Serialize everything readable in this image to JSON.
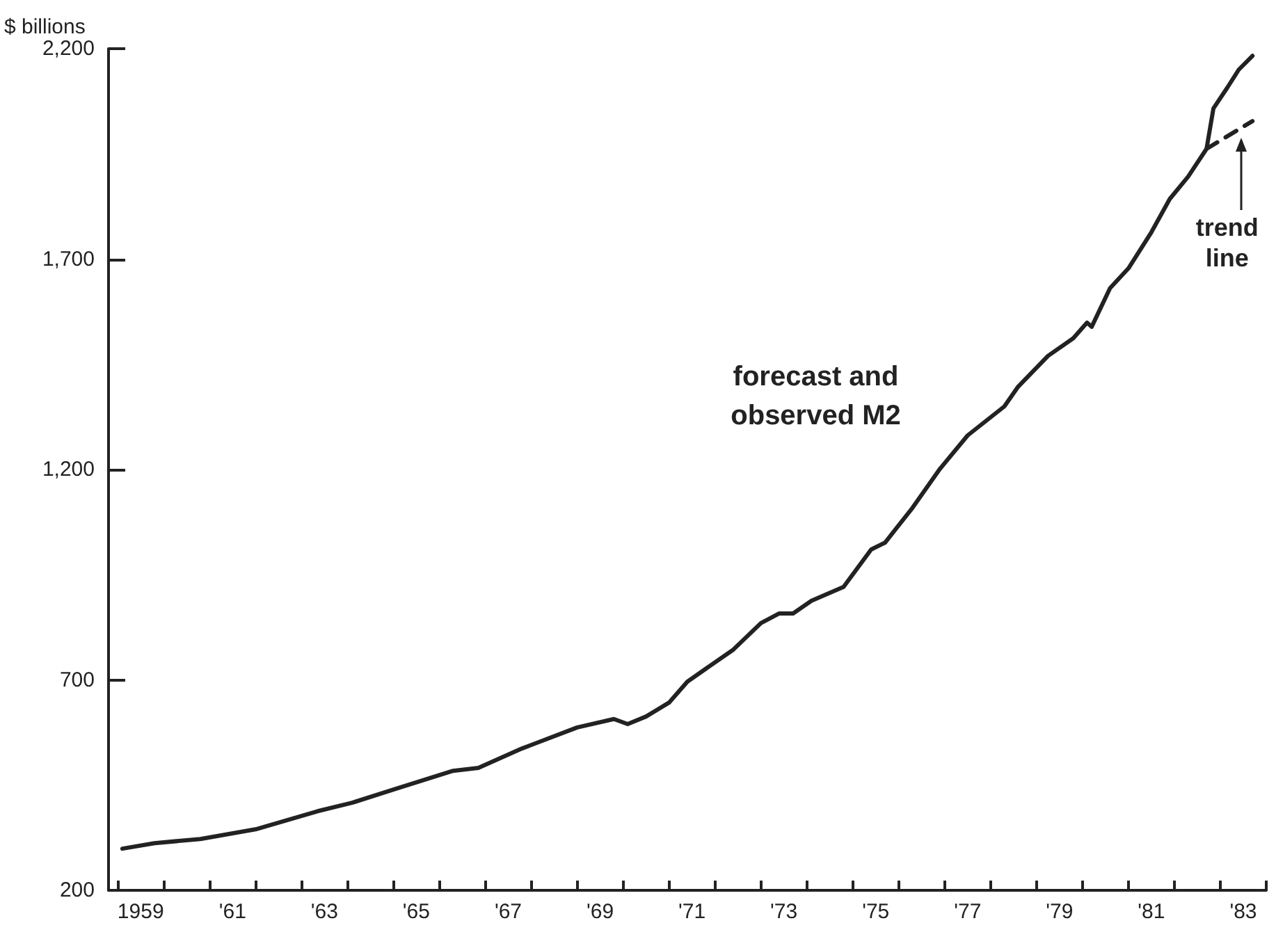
{
  "chart_data": {
    "type": "line",
    "ylabel": "$ billions",
    "legend": false,
    "grid": false,
    "marker": "none",
    "xlim": [
      1958.3,
      1983.5
    ],
    "ylim": [
      200,
      2200
    ],
    "yticks": [
      200,
      700,
      {
        "value": 1200,
        "label": "1,200"
      },
      {
        "value": 1700,
        "label": "1,700"
      },
      {
        "value": 2200,
        "label": "2,200"
      }
    ],
    "xticks": [
      {
        "value": 1958.5,
        "label": null
      },
      {
        "value": 1959,
        "label": "1959"
      },
      {
        "value": 1959.5,
        "label": null
      },
      {
        "value": 1960.5,
        "label": null
      },
      {
        "value": 1961,
        "label": "'61"
      },
      {
        "value": 1961.5,
        "label": null
      },
      {
        "value": 1962.5,
        "label": null
      },
      {
        "value": 1963,
        "label": "'63"
      },
      {
        "value": 1963.5,
        "label": null
      },
      {
        "value": 1964.5,
        "label": null
      },
      {
        "value": 1965,
        "label": "'65"
      },
      {
        "value": 1965.5,
        "label": null
      },
      {
        "value": 1966.5,
        "label": null
      },
      {
        "value": 1967,
        "label": "'67"
      },
      {
        "value": 1967.5,
        "label": null
      },
      {
        "value": 1968.5,
        "label": null
      },
      {
        "value": 1969,
        "label": "'69"
      },
      {
        "value": 1969.5,
        "label": null
      },
      {
        "value": 1970.5,
        "label": null
      },
      {
        "value": 1971,
        "label": "'71"
      },
      {
        "value": 1971.5,
        "label": null
      },
      {
        "value": 1972.5,
        "label": null
      },
      {
        "value": 1973,
        "label": "'73"
      },
      {
        "value": 1973.5,
        "label": null
      },
      {
        "value": 1974.5,
        "label": null
      },
      {
        "value": 1975,
        "label": "'75"
      },
      {
        "value": 1975.5,
        "label": null
      },
      {
        "value": 1976.5,
        "label": null
      },
      {
        "value": 1977,
        "label": "'77"
      },
      {
        "value": 1977.5,
        "label": null
      },
      {
        "value": 1978.5,
        "label": null
      },
      {
        "value": 1979,
        "label": "'79"
      },
      {
        "value": 1979.5,
        "label": null
      },
      {
        "value": 1980.5,
        "label": null
      },
      {
        "value": 1981,
        "label": "'81"
      },
      {
        "value": 1981.5,
        "label": null
      },
      {
        "value": 1982.5,
        "label": null
      },
      {
        "value": 1983,
        "label": "'83"
      },
      {
        "value": 1983.5,
        "label": null
      }
    ],
    "series": [
      {
        "name": "forecast and observed M2",
        "color": "#222222",
        "line_style": "solid",
        "x": [
          1958.6,
          1959.3,
          1960.3,
          1961.5,
          1962.85,
          1963.6,
          1964.55,
          1965.8,
          1966.35,
          1967.3,
          1968.5,
          1969.3,
          1969.6,
          1970.0,
          1970.5,
          1970.9,
          1971.9,
          1972.5,
          1972.9,
          1973.2,
          1973.6,
          1974.3,
          1974.9,
          1975.2,
          1975.8,
          1976.4,
          1977.0,
          1977.8,
          1978.1,
          1978.75,
          1979.3,
          1979.6,
          1979.7,
          1980.1,
          1980.5,
          1981.0,
          1981.4,
          1981.8,
          1982.2,
          1982.35,
          1982.65,
          1982.9,
          1983.2
        ],
        "values": [
          299,
          312,
          322,
          345,
          388,
          408,
          441,
          484,
          491,
          537,
          587,
          607,
          595,
          613,
          646,
          696,
          772,
          835,
          858,
          858,
          888,
          921,
          1010,
          1026,
          1109,
          1202,
          1281,
          1350,
          1397,
          1470,
          1512,
          1549,
          1539,
          1631,
          1678,
          1764,
          1843,
          1896,
          1962,
          2058,
          2107,
          2150,
          2183
        ]
      },
      {
        "name": "trend line",
        "color": "#222222",
        "line_style": "dashed",
        "x": [
          1982.2,
          1983.2
        ],
        "values": [
          1962,
          2028
        ]
      }
    ]
  }
}
